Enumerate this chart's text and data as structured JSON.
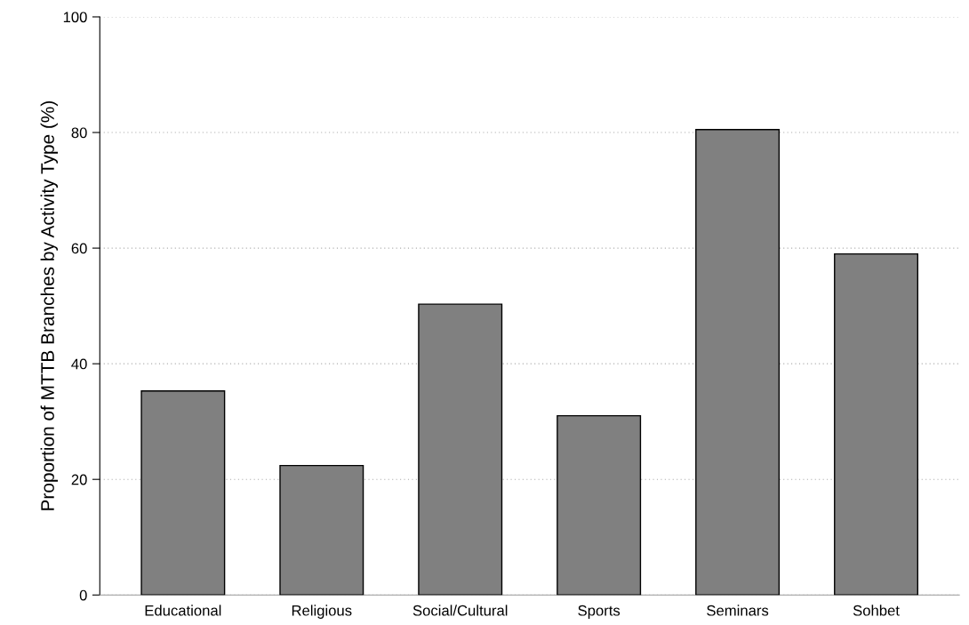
{
  "chart_data": {
    "type": "bar",
    "ylabel": "Proportion of MTTB Branches by Activity Type (%)",
    "categories": [
      "Educational",
      "Religious",
      "Social/Cultural",
      "Sports",
      "Seminars",
      "Sohbet"
    ],
    "values": [
      35.3,
      22.4,
      50.3,
      31.0,
      80.5,
      59.0
    ],
    "color": "#808080",
    "ylim": [
      0,
      100
    ],
    "yticks": [
      0,
      20,
      40,
      60,
      80,
      100
    ],
    "grid": "y"
  }
}
